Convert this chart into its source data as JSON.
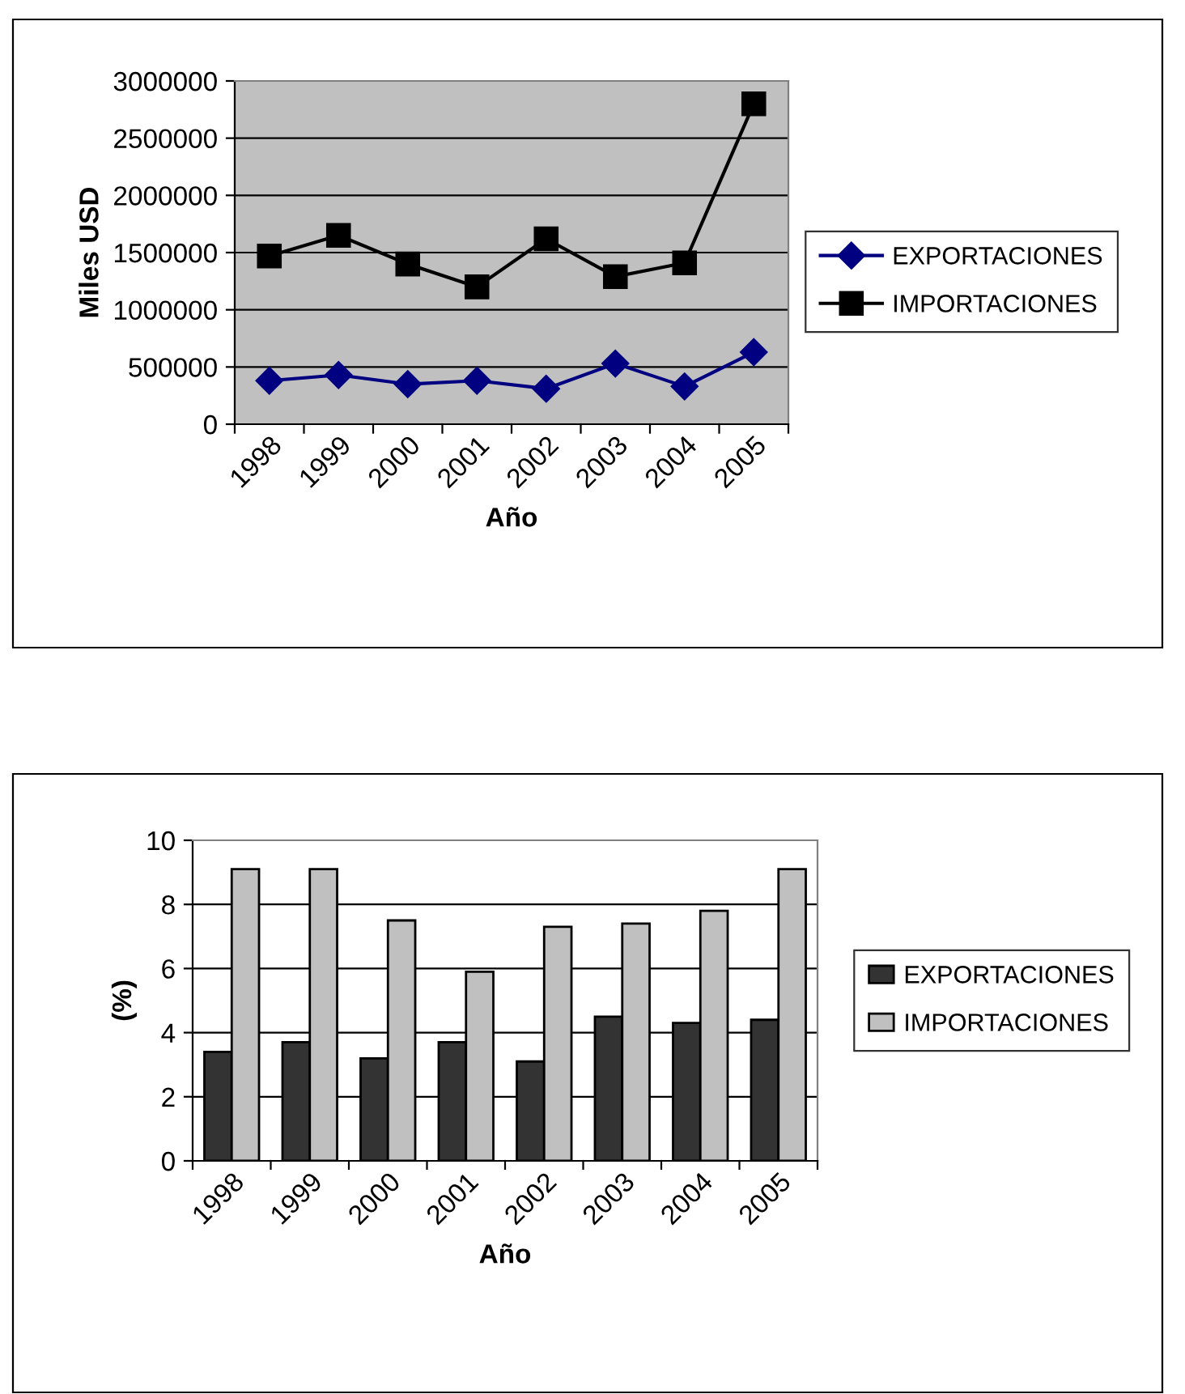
{
  "chart_data": [
    {
      "type": "line",
      "xlabel": "Año",
      "ylabel": "Miles USD",
      "categories": [
        "1998",
        "1999",
        "2000",
        "2001",
        "2002",
        "2003",
        "2004",
        "2005"
      ],
      "ylim": [
        0,
        3000000
      ],
      "yticks": [
        0,
        500000,
        1000000,
        1500000,
        2000000,
        2500000,
        3000000
      ],
      "grid": "y",
      "legend": "right",
      "series": [
        {
          "name": "EXPORTACIONES",
          "color": "#000080",
          "marker": "diamond",
          "values": [
            380000,
            430000,
            350000,
            380000,
            310000,
            530000,
            330000,
            630000
          ]
        },
        {
          "name": "IMPORTACIONES",
          "color": "#000000",
          "marker": "square",
          "values": [
            1470000,
            1650000,
            1400000,
            1200000,
            1620000,
            1290000,
            1410000,
            2800000
          ]
        }
      ]
    },
    {
      "type": "bar",
      "xlabel": "Año",
      "ylabel": "(%)",
      "categories": [
        "1998",
        "1999",
        "2000",
        "2001",
        "2002",
        "2003",
        "2004",
        "2005"
      ],
      "ylim": [
        0,
        10
      ],
      "yticks": [
        0,
        2,
        4,
        6,
        8,
        10
      ],
      "grid": "y",
      "legend": "right",
      "series": [
        {
          "name": "EXPORTACIONES",
          "color": "#333333",
          "values": [
            3.4,
            3.7,
            3.2,
            3.7,
            3.1,
            4.5,
            4.3,
            4.4
          ]
        },
        {
          "name": "IMPORTACIONES",
          "color": "#c0c0c0",
          "values": [
            9.1,
            9.1,
            7.5,
            5.9,
            7.3,
            7.4,
            7.8,
            9.1
          ]
        }
      ]
    }
  ]
}
